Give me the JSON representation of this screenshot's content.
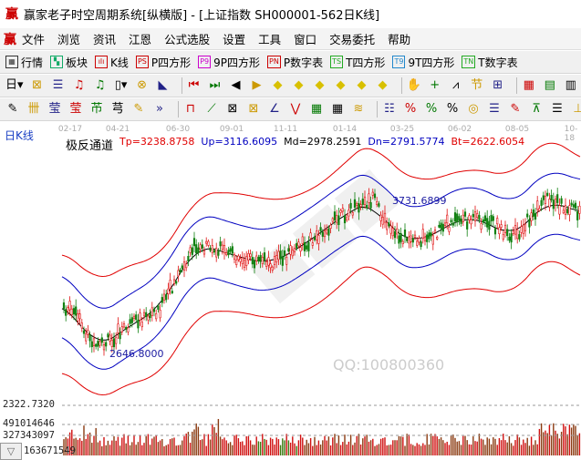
{
  "window": {
    "title": "赢家老子时空周期系统[纵横版] - [上证指数  SH000001-562日K线]",
    "logo": "赢"
  },
  "menu": [
    "文件",
    "浏览",
    "资讯",
    "江恩",
    "公式选股",
    "设置",
    "工具",
    "窗口",
    "交易委托",
    "帮助"
  ],
  "toolbar1": [
    {
      "icon": "grid-icon",
      "label": "行情",
      "tag": "▦"
    },
    {
      "icon": "blocks-icon",
      "label": "板块",
      "tag": "▚"
    },
    {
      "icon": "kline-icon",
      "label": "K线",
      "tag": "ılı"
    },
    {
      "icon": "ps-icon",
      "label": "P四方形",
      "tag": "PS"
    },
    {
      "icon": "p9-icon",
      "label": "9P四方形",
      "tag": "P9"
    },
    {
      "icon": "pn-icon",
      "label": "P数字表",
      "tag": "PN"
    },
    {
      "icon": "ts-icon",
      "label": "T四方形",
      "tag": "TS"
    },
    {
      "icon": "t9-icon",
      "label": "9T四方形",
      "tag": "T9"
    },
    {
      "icon": "tn-icon",
      "label": "T数字表",
      "tag": "TN"
    }
  ],
  "toolbar2_icons": [
    "日▾",
    "⊠",
    "☰",
    "♫",
    "♫",
    "▯▾",
    "⊗",
    "◣",
    "⏮",
    "⏭",
    "◀",
    "▶",
    "◆",
    "◆",
    "◆",
    "◆",
    "◆",
    "◆",
    "✋",
    "+",
    "⩘",
    "节",
    "⊞",
    "▦",
    "▤",
    "▥"
  ],
  "toolbar3_icons": [
    "✎",
    "卌",
    "莹",
    "莹",
    "芇",
    "芎",
    "✎",
    "»",
    "⊓",
    "⟋",
    "⊠",
    "⊠",
    "∠",
    "⋁",
    "▦",
    "▦",
    "≋",
    "☷",
    "%",
    "%",
    "%",
    "◎",
    "☰",
    "✎",
    "⊼",
    "☰",
    "⊥"
  ],
  "chart": {
    "period_label": "日K线",
    "dates": [
      "02-17",
      "04-21",
      "06-30",
      "09-01",
      "11-11",
      "01-14",
      "03-25",
      "06-02",
      "08-05",
      "10-18"
    ],
    "indicator": {
      "name": "极反通道",
      "tp": "Tp=3238.8758",
      "up": "Up=3116.6095",
      "md": "Md=2978.2591",
      "dn": "Dn=2791.5774",
      "bt": "Bt=2622.6054"
    },
    "high_label": "3731.6899",
    "low_label": "2646.8000",
    "watermark": "QQ:100800360",
    "axis_label": "2322.7320",
    "volume_labels": [
      "491014646",
      "327343097",
      "163671549"
    ],
    "colors": {
      "up": "#e01010",
      "down": "#108010",
      "tp": "#e00000",
      "up_line": "#0000c0",
      "md": "#000000",
      "dn": "#0000c0",
      "bt": "#e00000"
    }
  },
  "scroll_button": "▽"
}
